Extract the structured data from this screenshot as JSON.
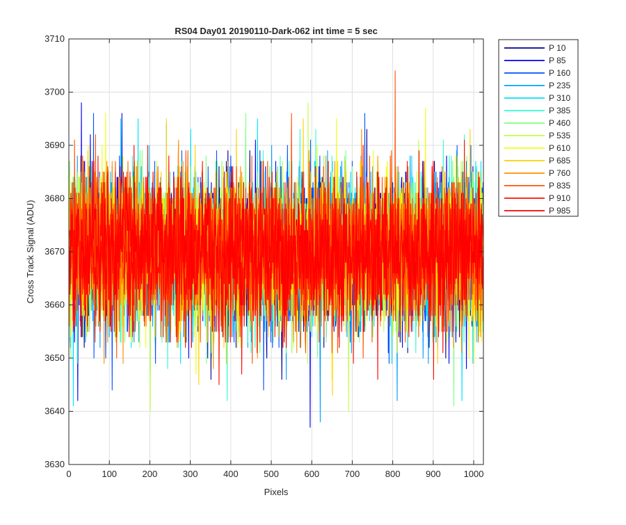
{
  "chart_data": {
    "type": "line",
    "title": "RS04 Day01 20190110-Dark-062 int time = 5 sec",
    "xlabel": "Pixels",
    "ylabel": "Cross Track Signal (ADU)",
    "xlim": [
      0,
      1024
    ],
    "ylim": [
      3630,
      3710
    ],
    "xticks": [
      0,
      100,
      200,
      300,
      400,
      500,
      600,
      700,
      800,
      900,
      1000
    ],
    "yticks": [
      3630,
      3640,
      3650,
      3660,
      3670,
      3680,
      3690,
      3700,
      3710
    ],
    "grid": true,
    "legend_position": "outside-top-right",
    "noise_model": {
      "mean": 3670,
      "std": 7,
      "min": 3637,
      "max": 3704
    },
    "series": [
      {
        "name": "P 10",
        "color": "#00008f",
        "peaks": []
      },
      {
        "name": "P 85",
        "color": "#0000ef",
        "peaks": [
          {
            "x": 30,
            "y": 3698
          },
          {
            "x": 130,
            "y": 3696
          },
          {
            "x": 460,
            "y": 3691
          },
          {
            "x": 595,
            "y": 3637
          }
        ]
      },
      {
        "name": "P 160",
        "color": "#0050ff",
        "peaks": [
          {
            "x": 60,
            "y": 3696
          },
          {
            "x": 480,
            "y": 3644
          },
          {
            "x": 730,
            "y": 3696
          }
        ]
      },
      {
        "name": "P 235",
        "color": "#00a0ff",
        "peaks": [
          {
            "x": 620,
            "y": 3638
          },
          {
            "x": 810,
            "y": 3642
          }
        ]
      },
      {
        "name": "P 310",
        "color": "#00e0ff",
        "peaks": [
          {
            "x": 10,
            "y": 3641
          },
          {
            "x": 170,
            "y": 3695
          },
          {
            "x": 240,
            "y": 3694
          },
          {
            "x": 970,
            "y": 3642
          }
        ]
      },
      {
        "name": "P 385",
        "color": "#30ffcf",
        "peaks": [
          {
            "x": 390,
            "y": 3642
          },
          {
            "x": 570,
            "y": 3693
          }
        ]
      },
      {
        "name": "P 460",
        "color": "#7fff80",
        "peaks": [
          {
            "x": 950,
            "y": 3641
          }
        ]
      },
      {
        "name": "P 535",
        "color": "#c0ff3f",
        "peaks": [
          {
            "x": 200,
            "y": 3640
          },
          {
            "x": 590,
            "y": 3698
          },
          {
            "x": 690,
            "y": 3640
          }
        ]
      },
      {
        "name": "P 610",
        "color": "#efff10",
        "peaks": [
          {
            "x": 90,
            "y": 3696
          },
          {
            "x": 660,
            "y": 3695
          },
          {
            "x": 880,
            "y": 3697
          }
        ]
      },
      {
        "name": "P 685",
        "color": "#ffd000",
        "peaks": [
          {
            "x": 320,
            "y": 3645
          },
          {
            "x": 650,
            "y": 3643
          },
          {
            "x": 990,
            "y": 3693
          }
        ]
      },
      {
        "name": "P 760",
        "color": "#ff8f00",
        "peaks": [
          {
            "x": 270,
            "y": 3691
          }
        ]
      },
      {
        "name": "P 835",
        "color": "#ff5000",
        "peaks": [
          {
            "x": 805,
            "y": 3704
          }
        ]
      },
      {
        "name": "P 910",
        "color": "#ff1000",
        "peaks": [
          {
            "x": 370,
            "y": 3645
          },
          {
            "x": 900,
            "y": 3646
          }
        ]
      },
      {
        "name": "P 985",
        "color": "#ff0000",
        "peaks": []
      }
    ]
  }
}
